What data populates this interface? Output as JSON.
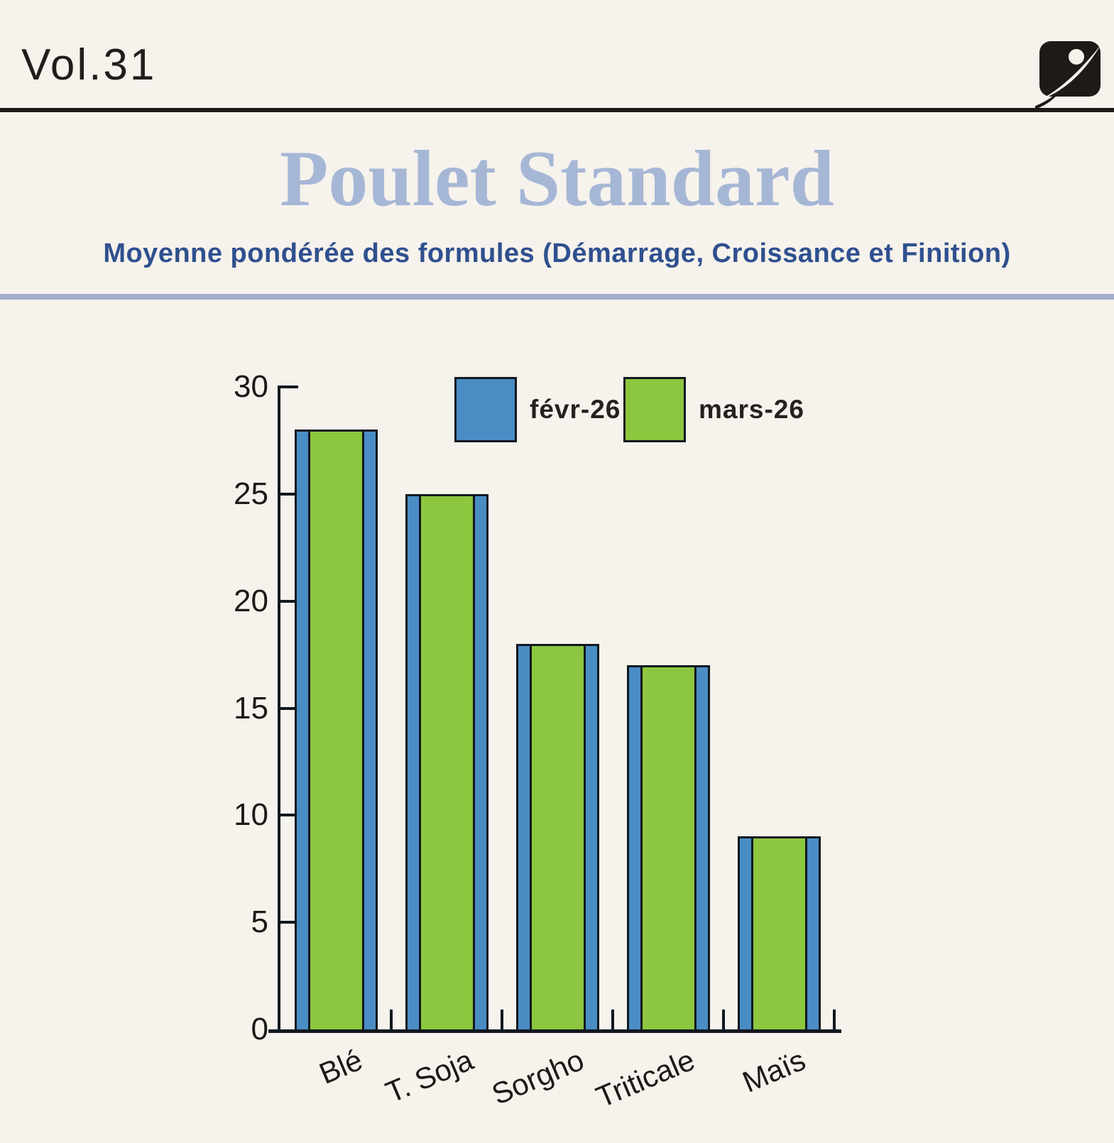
{
  "header": {
    "volume": "Vol.31",
    "logo": "brand-logo"
  },
  "title": "Poulet Standard",
  "subtitle": "Moyenne pondérée des formules (Démarrage, Croissance et Finition)",
  "chart_data": {
    "type": "bar",
    "categories": [
      "Blé",
      "T. Soja",
      "Sorgho",
      "Triticale",
      "Maïs"
    ],
    "series": [
      {
        "name": "févr-26",
        "color": "#4a8dc5",
        "values": [
          28,
          25,
          18,
          17,
          9
        ]
      },
      {
        "name": "mars-26",
        "color": "#8dc63f",
        "values": [
          28,
          25,
          18,
          17,
          9
        ]
      }
    ],
    "title": "Poulet Standard",
    "xlabel": "",
    "ylabel": "",
    "ylim": [
      0,
      30
    ],
    "yticks": [
      0,
      5,
      10,
      15,
      20,
      25,
      30
    ],
    "grid": false,
    "legend_position": "top-inside",
    "bar_style": "overlapped-front-narrower",
    "outline_color": "#11181f"
  },
  "colors": {
    "background": "#f6f2ec",
    "title": "#a6b7d6",
    "subtitle": "#2f508f",
    "divider_top": "#1d1a17",
    "divider_subtitle": "#9fadc8",
    "axis_text": "#1d1a17"
  }
}
